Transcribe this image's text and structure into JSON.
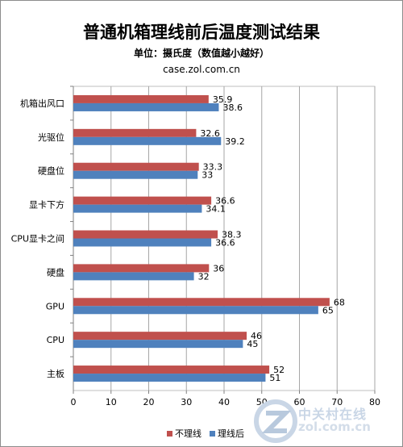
{
  "chart_data": {
    "type": "bar",
    "orientation": "horizontal",
    "title": "普通机箱理线前后温度测试结果",
    "subtitle": "单位：摄氏度（数值越小越好）",
    "source": "case.zol.com.cn",
    "categories": [
      "机箱出风口",
      "光驱位",
      "硬盘位",
      "显卡下方",
      "CPU显卡之间",
      "硬盘",
      "GPU",
      "CPU",
      "主板"
    ],
    "series": [
      {
        "name": "不理线",
        "color": "#c0504d",
        "values": [
          35.9,
          32.6,
          33.3,
          36.6,
          38.3,
          36,
          68,
          46,
          52
        ]
      },
      {
        "name": "理线后",
        "color": "#4f81bd",
        "values": [
          38.6,
          39.2,
          33,
          34.1,
          36.6,
          32,
          65,
          45,
          51
        ]
      }
    ],
    "xlim": [
      0,
      80
    ],
    "ticks": [
      0,
      10,
      20,
      30,
      40,
      50,
      60,
      70,
      80
    ],
    "grid": true,
    "legend": "bottom"
  },
  "watermark": {
    "text": "中关村在线",
    "domain": "zol.com.cn",
    "icon": "zol-logo-icon"
  }
}
